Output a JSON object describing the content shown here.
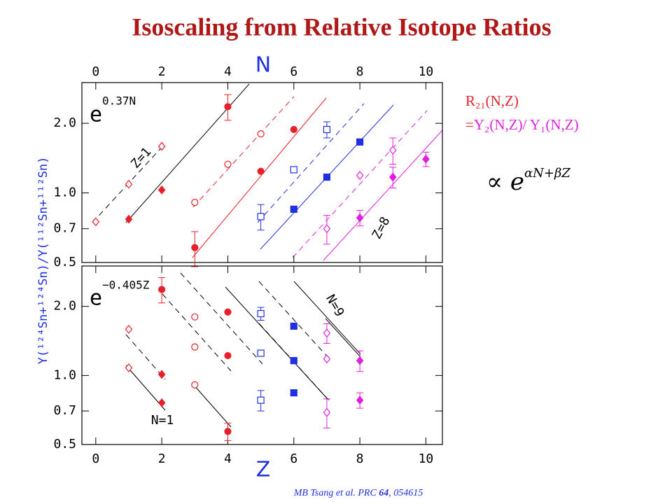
{
  "title": "Isoscaling from Relative Isotope Ratios",
  "y_label": "Y(¹²⁴Sn+¹²⁴Sn)/Y(¹¹²Sn+¹¹²Sn)",
  "ratio_label": "R₂₁(N,Z)",
  "ratio_definition": [
    "=",
    "Y₂(N,Z)/ Y₁(N,Z)"
  ],
  "proportional": {
    "base": "∝ e",
    "exponent": "αN+βZ"
  },
  "citation": [
    "MB Tsang  et al. PRC ",
    "64",
    ", 054615"
  ],
  "chart_data": [
    {
      "type": "scatter",
      "x_label": "N",
      "xlim": [
        -0.42,
        10.5
      ],
      "xticks": [
        0,
        2,
        4,
        6,
        8,
        10
      ],
      "ylim": [
        0.5,
        3.0
      ],
      "yticks": [
        0.5,
        0.7,
        {
          "value": 1,
          "label": "1.0"
        },
        {
          "value": 2,
          "label": "2.0"
        }
      ],
      "log_y": true,
      "exp_base": "e",
      "exp_power": "0.37N",
      "labels": [
        "Z=1",
        "Z=8"
      ],
      "series": [
        {
          "color": "#e8202a",
          "marker": "diamond",
          "filled": false,
          "x": [
            0,
            1,
            2
          ],
          "values": [
            0.75,
            1.09,
            1.59
          ]
        },
        {
          "color": "#e8202a",
          "marker": "diamond",
          "filled": true,
          "x": [
            1,
            2
          ],
          "values": [
            0.77,
            1.03
          ]
        },
        {
          "color": "#e8202a",
          "marker": "circle",
          "filled": true,
          "x": [
            3,
            4
          ],
          "values": [
            0.58,
            2.36
          ],
          "errors": [
            0.1,
            0.3
          ]
        },
        {
          "color": "#e8202a",
          "marker": "circle",
          "filled": false,
          "x": [
            3,
            4,
            5
          ],
          "values": [
            0.91,
            1.33,
            1.8
          ]
        },
        {
          "color": "#e8202a",
          "marker": "circle",
          "filled": true,
          "x": [
            5,
            6
          ],
          "values": [
            1.24,
            1.88
          ]
        },
        {
          "color": "#2030e0",
          "marker": "square",
          "filled": false,
          "x": [
            5,
            6,
            7
          ],
          "values": [
            0.79,
            1.26,
            1.88
          ],
          "errors": [
            0.1,
            null,
            0.15
          ]
        },
        {
          "color": "#2030e0",
          "marker": "square",
          "filled": true,
          "x": [
            6,
            7,
            8
          ],
          "values": [
            0.85,
            1.17,
            1.66
          ]
        },
        {
          "color": "#e020e0",
          "marker": "diamond",
          "filled": false,
          "x": [
            7,
            8,
            9
          ],
          "values": [
            0.7,
            1.19,
            1.53
          ],
          "errors": [
            0.1,
            null,
            0.2
          ]
        },
        {
          "color": "#e020e0",
          "marker": "diamond",
          "filled": true,
          "x": [
            8,
            9,
            10
          ],
          "values": [
            0.78,
            1.17,
            1.4
          ],
          "errors": [
            0.06,
            0.12,
            0.1
          ]
        }
      ]
    },
    {
      "type": "scatter",
      "x_label": "Z",
      "xlim": [
        -0.42,
        10.5
      ],
      "xticks": [
        0,
        2,
        4,
        6,
        8,
        10
      ],
      "ylim": [
        0.5,
        3.0
      ],
      "yticks": [
        0.5,
        0.7,
        {
          "value": 1,
          "label": "1.0"
        },
        {
          "value": 2,
          "label": "2.0"
        }
      ],
      "log_y": true,
      "exp_base": "e",
      "exp_power": "−0.405Z",
      "labels": [
        "N=1",
        "N=9"
      ],
      "series": [
        {
          "color": "#e8202a",
          "marker": "diamond",
          "filled": false,
          "x": [
            1,
            1
          ],
          "values": [
            1.59,
            1.08
          ]
        },
        {
          "color": "#e8202a",
          "marker": "diamond",
          "filled": true,
          "x": [
            2,
            2
          ],
          "values": [
            1.01,
            0.76
          ]
        },
        {
          "color": "#e8202a",
          "marker": "circle",
          "filled": false,
          "x": [
            3,
            3,
            3
          ],
          "values": [
            1.8,
            1.33,
            0.91
          ]
        },
        {
          "color": "#e8202a",
          "marker": "circle",
          "filled": true,
          "x": [
            2,
            4,
            4,
            4
          ],
          "values": [
            2.37,
            1.89,
            1.22,
            0.57
          ],
          "errors": [
            0.3,
            null,
            null,
            0.05
          ]
        },
        {
          "color": "#2030e0",
          "marker": "square",
          "filled": false,
          "x": [
            5,
            5,
            5
          ],
          "values": [
            1.86,
            1.25,
            0.78
          ],
          "errors": [
            0.12,
            null,
            0.08
          ]
        },
        {
          "color": "#2030e0",
          "marker": "square",
          "filled": true,
          "x": [
            6,
            6,
            6
          ],
          "values": [
            1.64,
            1.16,
            0.84
          ]
        },
        {
          "color": "#e020e0",
          "marker": "diamond",
          "filled": false,
          "x": [
            7,
            7,
            7
          ],
          "values": [
            1.53,
            1.18,
            0.69
          ],
          "errors": [
            0.15,
            null,
            0.1
          ]
        },
        {
          "color": "#e020e0",
          "marker": "diamond",
          "filled": true,
          "x": [
            8,
            8
          ],
          "values": [
            1.16,
            0.78
          ],
          "errors": [
            0.12,
            0.06
          ]
        }
      ]
    }
  ]
}
